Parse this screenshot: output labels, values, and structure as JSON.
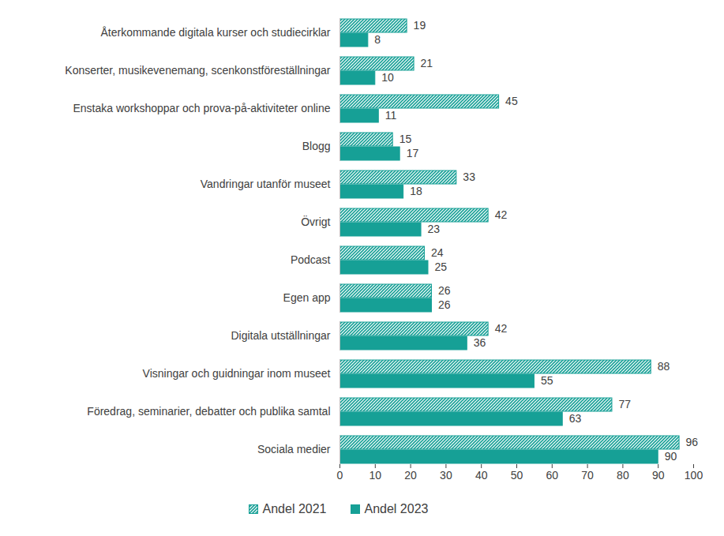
{
  "chart_data": {
    "type": "bar",
    "orientation": "horizontal",
    "categories": [
      "Återkommande digitala kurser och studiecirklar",
      "Konserter, musikevenemang, scenkonstföreställningar",
      "Enstaka workshoppar och prova-på-aktiviteter online",
      "Blogg",
      "Vandringar utanför museet",
      "Övrigt",
      "Podcast",
      "Egen app",
      "Digitala utställningar",
      "Visningar och guidningar inom museet",
      "Föredrag, seminarier, debatter och publika samtal",
      "Sociala medier"
    ],
    "series": [
      {
        "name": "Andel 2021",
        "color": "#16a096",
        "marker": "hatch",
        "values": [
          19,
          21,
          45,
          15,
          33,
          42,
          24,
          26,
          42,
          88,
          77,
          96
        ]
      },
      {
        "name": "Andel 2023",
        "color": "#16a096",
        "marker": "solid",
        "values": [
          8,
          10,
          11,
          17,
          18,
          23,
          25,
          26,
          36,
          55,
          63,
          90
        ]
      }
    ],
    "xlim": [
      0,
      100
    ],
    "xticks": [
      0,
      10,
      20,
      30,
      40,
      50,
      60,
      70,
      80,
      90,
      100
    ],
    "grid": false,
    "data_labels": true,
    "legend": "bottom"
  }
}
